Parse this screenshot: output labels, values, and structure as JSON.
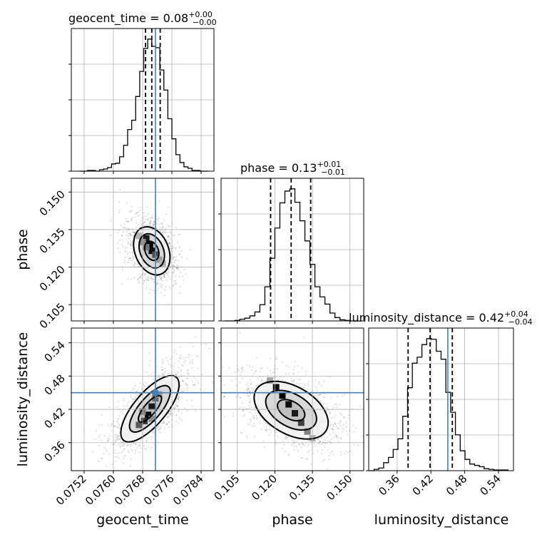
{
  "chart_data": {
    "type": "corner",
    "parameters": [
      "geocent_time",
      "phase",
      "luminosity_distance"
    ],
    "axis_labels": {
      "geocent_time": "geocent_time",
      "phase": "phase",
      "luminosity_distance": "luminosity_distance"
    },
    "titles": [
      {
        "param": "geocent_time",
        "text": "geocent_time = 0.08",
        "sup": "+0.00",
        "sub": "−0.00"
      },
      {
        "param": "phase",
        "text": "phase = 0.13",
        "sup": "+0.01",
        "sub": "−0.01"
      },
      {
        "param": "luminosity_distance",
        "text": "luminosity_distance = 0.42",
        "sup": "+0.04",
        "sub": "−0.04"
      }
    ],
    "ranges": {
      "geocent_time": [
        0.07485,
        0.07875
      ],
      "phase": [
        0.0985,
        0.1555
      ],
      "luminosity_distance": [
        0.3095,
        0.5666
      ]
    },
    "ticks": {
      "geocent_time": [
        {
          "value": 0.0752,
          "label": "0.0752"
        },
        {
          "value": 0.076,
          "label": "0.0760"
        },
        {
          "value": 0.0768,
          "label": "0.0768"
        },
        {
          "value": 0.0776,
          "label": "0.0776"
        },
        {
          "value": 0.0784,
          "label": "0.0784"
        }
      ],
      "phase": [
        {
          "value": 0.105,
          "label": "0.105"
        },
        {
          "value": 0.12,
          "label": "0.120"
        },
        {
          "value": 0.135,
          "label": "0.135"
        },
        {
          "value": 0.15,
          "label": "0.150"
        }
      ],
      "luminosity_distance": [
        {
          "value": 0.36,
          "label": "0.36"
        },
        {
          "value": 0.42,
          "label": "0.42"
        },
        {
          "value": 0.48,
          "label": "0.48"
        },
        {
          "value": 0.54,
          "label": "0.54"
        }
      ]
    },
    "truths": {
      "geocent_time": 0.07715,
      "luminosity_distance": 0.45
    },
    "quantiles": {
      "geocent_time": [
        0.07688,
        0.07705,
        0.07728
      ],
      "phase": [
        0.1183,
        0.1265,
        0.1343
      ],
      "luminosity_distance": [
        0.3795,
        0.4185,
        0.458
      ]
    },
    "histograms": {
      "geocent_time": {
        "edges": [
          0.07507,
          0.07518,
          0.07529,
          0.0754,
          0.07551,
          0.07562,
          0.07573,
          0.07584,
          0.07595,
          0.07606,
          0.07617,
          0.07628,
          0.07639,
          0.0765,
          0.07661,
          0.07672,
          0.07683,
          0.07694,
          0.07705,
          0.07716,
          0.07727,
          0.07738,
          0.07749,
          0.0776,
          0.07771,
          0.07782,
          0.07793,
          0.07804,
          0.07815,
          0.07826,
          0.07837,
          0.07848,
          0.07859
        ],
        "counts": [
          0,
          0,
          1,
          1,
          0,
          2,
          3,
          5,
          10,
          11,
          20,
          36,
          58,
          71,
          104,
          139,
          171,
          184,
          174,
          172,
          141,
          113,
          73,
          45,
          23,
          12,
          6,
          4,
          1,
          1,
          0,
          0
        ]
      },
      "phase": {
        "edges": [
          0.1,
          0.102,
          0.104,
          0.106,
          0.108,
          0.11,
          0.112,
          0.114,
          0.116,
          0.118,
          0.12,
          0.122,
          0.124,
          0.126,
          0.128,
          0.13,
          0.132,
          0.134,
          0.136,
          0.138,
          0.14,
          0.142,
          0.144,
          0.146,
          0.148,
          0.15,
          0.152,
          0.154
        ],
        "counts": [
          0,
          0,
          1,
          3,
          5,
          9,
          16,
          29,
          61,
          112,
          166,
          211,
          232,
          236,
          212,
          179,
          143,
          101,
          61,
          43,
          30,
          14,
          6,
          2,
          1,
          0,
          0
        ]
      },
      "luminosity_distance": {
        "edges": [
          0.3105,
          0.319,
          0.3275,
          0.336,
          0.3445,
          0.353,
          0.3615,
          0.37,
          0.3785,
          0.387,
          0.3955,
          0.404,
          0.4125,
          0.421,
          0.4295,
          0.438,
          0.4465,
          0.455,
          0.4635,
          0.472,
          0.4805,
          0.489,
          0.4975,
          0.506,
          0.5145,
          0.523,
          0.5315,
          0.54,
          0.5485,
          0.557
        ],
        "counts": [
          0,
          2,
          4,
          12,
          20,
          32,
          48,
          82,
          125,
          162,
          171,
          190,
          199,
          198,
          180,
          168,
          118,
          88,
          54,
          30,
          17,
          10,
          8,
          6,
          3,
          2,
          1,
          1,
          1
        ]
      }
    },
    "scatter_2d": [
      {
        "x_param": "geocent_time",
        "y_param": "phase",
        "center": [
          0.07705,
          0.1265
        ],
        "contours": [
          {
            "level": "inner",
            "sx": 0.00018,
            "sy": 0.004,
            "rot_deg": -22
          },
          {
            "level": "middle",
            "sx": 0.00032,
            "sy": 0.0071,
            "rot_deg": -22
          },
          {
            "level": "outer",
            "sx": 0.00046,
            "sy": 0.01,
            "rot_deg": -22
          }
        ],
        "density_cells": [
          [
            0.0769,
            0.1315,
            0.9
          ],
          [
            0.077,
            0.129,
            1.0
          ],
          [
            0.07705,
            0.1265,
            0.95
          ],
          [
            0.07715,
            0.125,
            0.7
          ],
          [
            0.0769,
            0.128,
            0.55
          ],
          [
            0.0768,
            0.13,
            0.45
          ],
          [
            0.07725,
            0.123,
            0.4
          ],
          [
            0.07735,
            0.1215,
            0.3
          ],
          [
            0.0767,
            0.1325,
            0.3
          ]
        ]
      },
      {
        "x_param": "geocent_time",
        "y_param": "luminosity_distance",
        "center": [
          0.077,
          0.421
        ],
        "contours": [
          {
            "level": "inner",
            "sx": 0.00016,
            "sy": 0.03,
            "rot_deg": 40
          },
          {
            "level": "middle",
            "sx": 0.0003,
            "sy": 0.052,
            "rot_deg": 40
          },
          {
            "level": "outer",
            "sx": 0.00044,
            "sy": 0.074,
            "rot_deg": 40
          }
        ],
        "density_cells": [
          [
            0.07695,
            0.41,
            1.0
          ],
          [
            0.07705,
            0.425,
            0.9
          ],
          [
            0.07685,
            0.399,
            0.8
          ],
          [
            0.07715,
            0.44,
            0.6
          ],
          [
            0.0767,
            0.392,
            0.65
          ],
          [
            0.07725,
            0.447,
            0.4
          ],
          [
            0.0768,
            0.416,
            0.5
          ],
          [
            0.07705,
            0.403,
            0.45
          ]
        ]
      },
      {
        "x_param": "phase",
        "y_param": "luminosity_distance",
        "center": [
          0.1265,
          0.4185
        ],
        "contours": [
          {
            "level": "inner",
            "sx": 0.0035,
            "sy": 0.027,
            "rot_deg": -60
          },
          {
            "level": "middle",
            "sx": 0.0065,
            "sy": 0.05,
            "rot_deg": -60
          },
          {
            "level": "outer",
            "sx": 0.0095,
            "sy": 0.073,
            "rot_deg": -60
          }
        ],
        "density_cells": [
          [
            0.1205,
            0.46,
            0.95
          ],
          [
            0.123,
            0.445,
            1.0
          ],
          [
            0.1255,
            0.429,
            0.95
          ],
          [
            0.128,
            0.413,
            0.9
          ],
          [
            0.1305,
            0.396,
            0.75
          ],
          [
            0.133,
            0.38,
            0.5
          ],
          [
            0.118,
            0.472,
            0.35
          ],
          [
            0.135,
            0.368,
            0.3
          ]
        ]
      }
    ],
    "colors": {
      "truth": "#4682b4",
      "hist": "#000000",
      "points": "#000000",
      "grid": "#b0b0b0"
    },
    "grid": true
  }
}
